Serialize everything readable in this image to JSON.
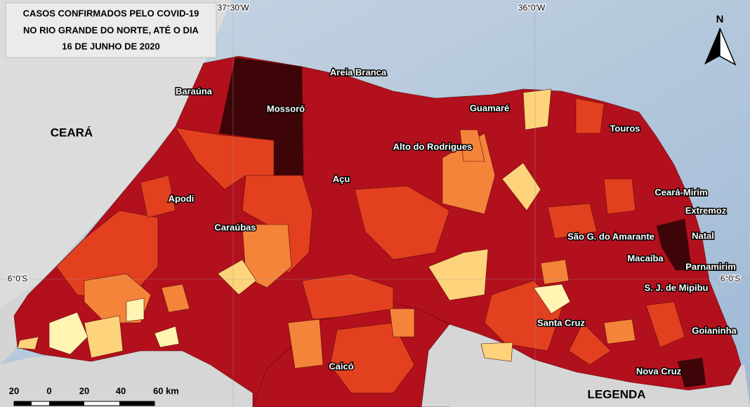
{
  "title": [
    "CASOS CONFIRMADOS PELO COVID-19",
    "NO RIO GRANDE DO NORTE, ATÉ O DIA",
    "16 DE JUNHO DE 2020"
  ],
  "state_label": "CEARÁ",
  "cities": [
    "Areia Branca",
    "Baraúna",
    "Mossoró",
    "Guamaré",
    "Touros",
    "Alto do Rodrigues",
    "Açu",
    "Apodi",
    "Ceará-Mirim",
    "Extremoz",
    "Caraúbas",
    "São G. do Amarante",
    "Natal",
    "Macaíba",
    "Parnamirim",
    "S. J. de Mipibu",
    "Santa Cruz",
    "Goianinha",
    "Caicó",
    "Nova Cruz"
  ],
  "coordinates": [
    "37°30'W",
    "36°0'W",
    "6°0'S",
    "6°0'S"
  ],
  "north": "N",
  "scale": [
    "20",
    "0",
    "20",
    "40",
    "60 km"
  ],
  "legend_title": "LEGENDA"
}
